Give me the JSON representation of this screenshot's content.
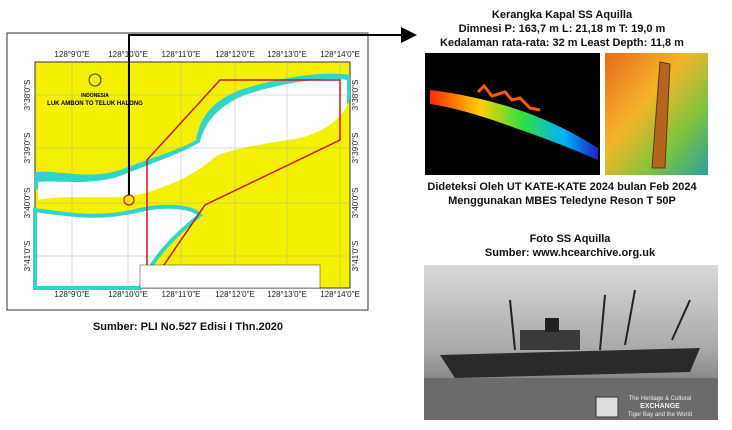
{
  "map": {
    "top_labels": [
      "128°9'0\"E",
      "128°10'0\"E",
      "128°11'0\"E",
      "128°12'0\"E",
      "128°13'0\"E",
      "128°14'0\"E"
    ],
    "bottom_labels": [
      "128°9'0\"E",
      "128°10'0\"E",
      "128°11'0\"E",
      "128°12'0\"E",
      "128°13'0\"E",
      "128°14'0\"E"
    ],
    "left_labels": [
      "3°38'0\"S",
      "3°39'0\"S",
      "3°40'0\"S",
      "3°41'0\"S"
    ],
    "right_labels": [
      "3°38'0\"S",
      "3°39'0\"S",
      "3°40'0\"S",
      "3°41'0\"S"
    ],
    "country": "INDONESIA",
    "title": "LUK AMBON TO TELUK HALONG"
  },
  "map_source": "Sumber: PLI No.527 Edisi I Thn.2020",
  "wreck": {
    "title": "Kerangka Kapal SS Aquilla",
    "dimensions": "Dimnesi P: 163,7 m L: 21,18 m T: 19,0 m",
    "depth": "Kedalaman rata-rata: 32 m Least Depth: 11,8 m"
  },
  "detection": {
    "line1": "Dideteksi Oleh UT KATE-KATE 2024 bulan Feb 2024",
    "line2": "Menggunakan MBES Teledyne Reson T 50P"
  },
  "photo": {
    "title": "Foto SS Aquilla",
    "source": "Sumber: www.hcearchive.org.uk",
    "watermark": [
      "The Heritage & Cultural",
      "EXCHANGE",
      "Tiger Bay and the World"
    ]
  }
}
